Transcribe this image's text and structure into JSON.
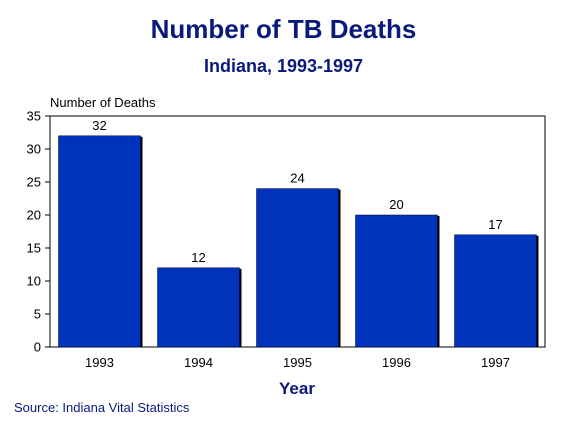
{
  "chart_data": {
    "type": "bar",
    "title": "Number of TB Deaths",
    "subtitle": "Indiana, 1993-1997",
    "ylabel": "Number of Deaths",
    "xlabel": "Year",
    "categories": [
      "1993",
      "1994",
      "1995",
      "1996",
      "1997"
    ],
    "values": [
      32,
      12,
      24,
      20,
      17
    ],
    "ylim": [
      0,
      35
    ],
    "yticks": [
      "0",
      "5",
      "10",
      "15",
      "20",
      "25",
      "30",
      "35"
    ],
    "grid": false,
    "legend": "none",
    "bar_color": "#0033bb",
    "source": "Source:  Indiana Vital Statistics"
  }
}
